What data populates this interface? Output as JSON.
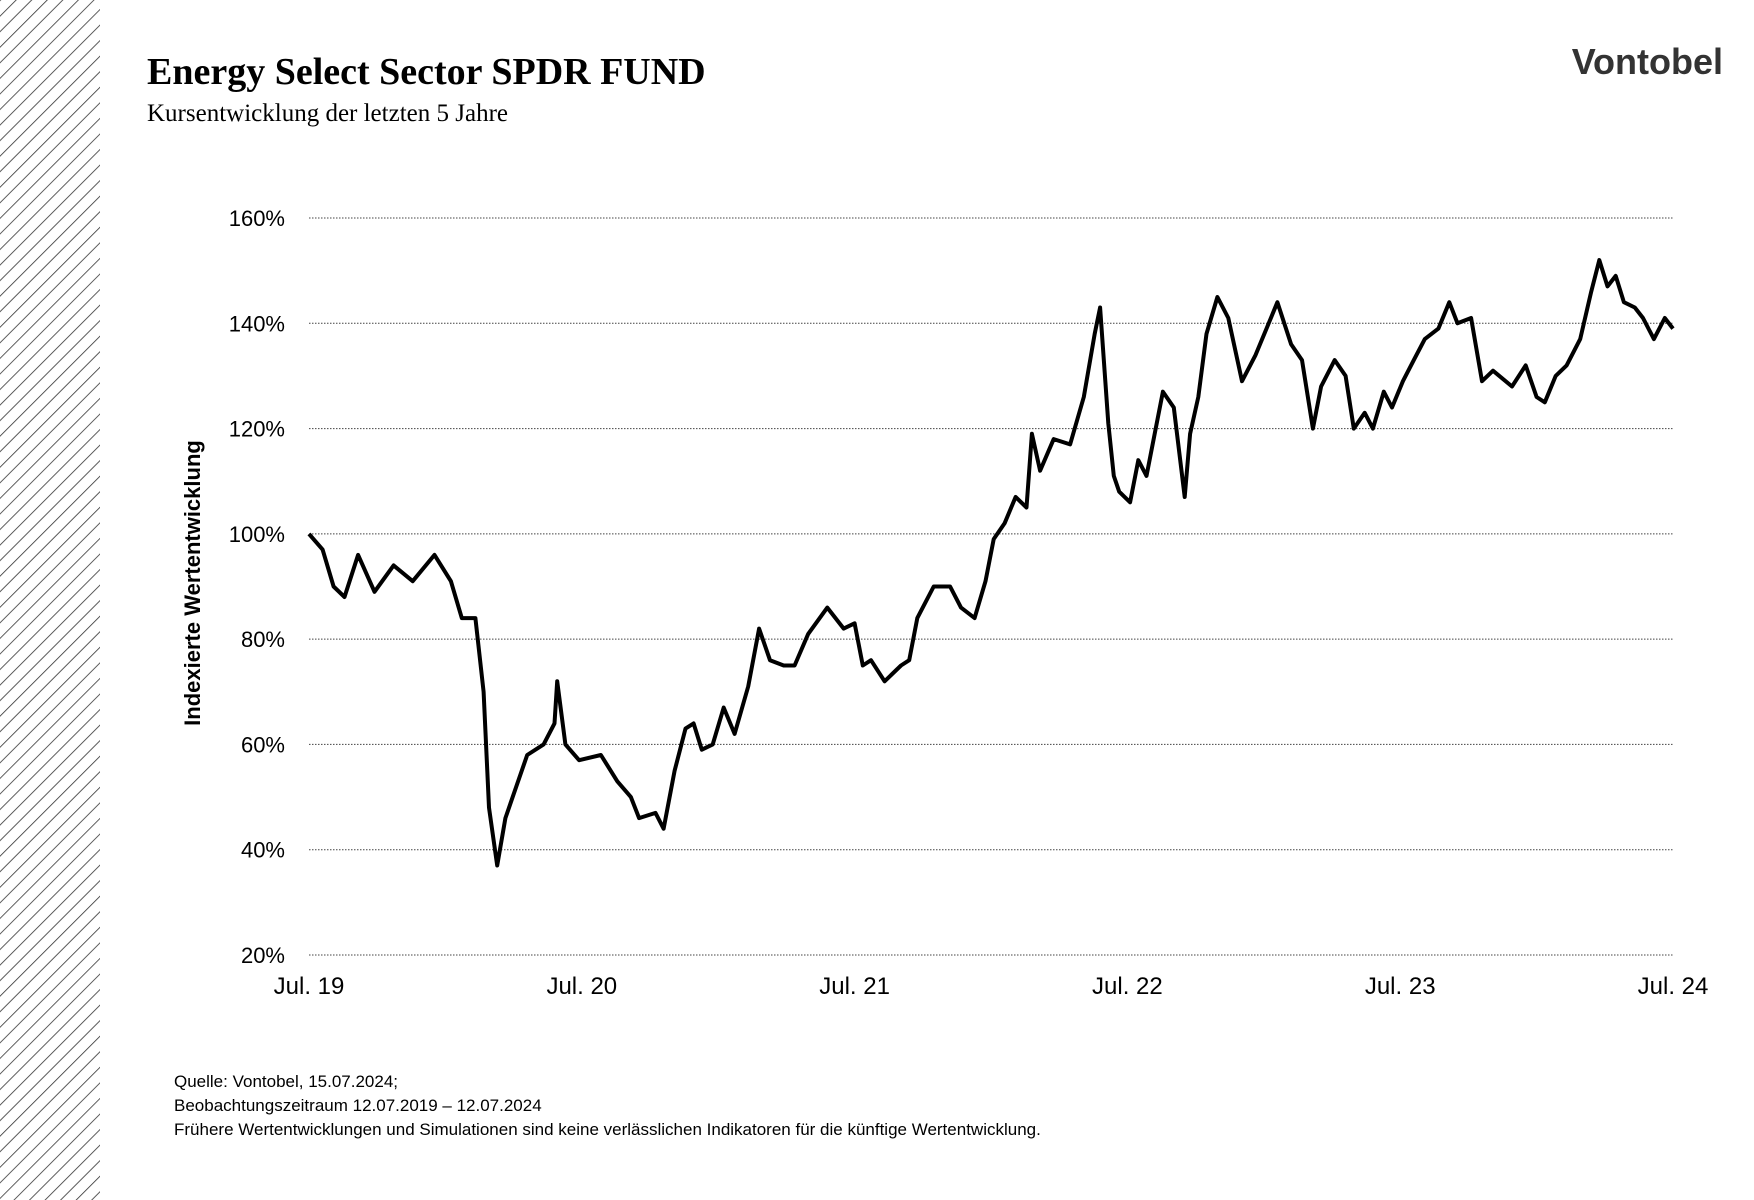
{
  "brand": "Vontobel",
  "chart_data": {
    "type": "line",
    "title": "Energy Select Sector SPDR FUND",
    "subtitle": "Kursentwicklung der letzten 5 Jahre",
    "y_label": "Indexierte Wertentwicklung",
    "notes": [
      "Quelle: Vontobel, 15.07.2024;",
      "Beobachtungszeitraum 12.07.2019 – 12.07.2024",
      "Frühere Wertentwicklungen und Simulationen sind keine verlässlichen Indikatoren für die künftige Wertentwicklung."
    ],
    "xlim": [
      2019.5,
      2024.5
    ],
    "xticks": [
      {
        "value": 2019.5,
        "label": "Jul. 19"
      },
      {
        "value": 2020.5,
        "label": "Jul. 20"
      },
      {
        "value": 2021.5,
        "label": "Jul. 21"
      },
      {
        "value": 2022.5,
        "label": "Jul. 22"
      },
      {
        "value": 2023.5,
        "label": "Jul. 23"
      },
      {
        "value": 2024.5,
        "label": "Jul. 24"
      }
    ],
    "ylim": [
      20,
      160
    ],
    "yticks": [
      {
        "value": 20,
        "label": "20%"
      },
      {
        "value": 40,
        "label": "40%"
      },
      {
        "value": 60,
        "label": "60%"
      },
      {
        "value": 80,
        "label": "80%"
      },
      {
        "value": 100,
        "label": "100%"
      },
      {
        "value": 120,
        "label": "120%"
      },
      {
        "value": 140,
        "label": "140%"
      },
      {
        "value": 160,
        "label": "160%"
      }
    ],
    "grid": true,
    "series": [
      {
        "color": "#000000",
        "x": [
          2019.5,
          2019.55,
          2019.59,
          2019.63,
          2019.68,
          2019.74,
          2019.81,
          2019.88,
          2019.96,
          2020.02,
          2020.06,
          2020.11,
          2020.14,
          2020.16,
          2020.19,
          2020.22,
          2020.26,
          2020.3,
          2020.36,
          2020.4,
          2020.41,
          2020.44,
          2020.49,
          2020.57,
          2020.63,
          2020.68,
          2020.71,
          2020.77,
          2020.8,
          2020.84,
          2020.88,
          2020.91,
          2020.94,
          2020.98,
          2021.02,
          2021.06,
          2021.11,
          2021.15,
          2021.19,
          2021.24,
          2021.28,
          2021.33,
          2021.4,
          2021.46,
          2021.5,
          2021.53,
          2021.56,
          2021.61,
          2021.67,
          2021.7,
          2021.73,
          2021.79,
          2021.85,
          2021.89,
          2021.94,
          2021.98,
          2022.01,
          2022.05,
          2022.09,
          2022.13,
          2022.15,
          2022.18,
          2022.23,
          2022.29,
          2022.34,
          2022.38,
          2022.4,
          2022.43,
          2022.45,
          2022.47,
          2022.51,
          2022.54,
          2022.57,
          2022.6,
          2022.63,
          2022.67,
          2022.71,
          2022.73,
          2022.76,
          2022.79,
          2022.83,
          2022.87,
          2022.92,
          2022.97,
          2023.01,
          2023.05,
          2023.1,
          2023.14,
          2023.18,
          2023.21,
          2023.26,
          2023.3,
          2023.33,
          2023.37,
          2023.4,
          2023.44,
          2023.47,
          2023.51,
          2023.55,
          2023.59,
          2023.64,
          2023.68,
          2023.71,
          2023.76,
          2023.8,
          2023.84,
          2023.91,
          2023.96,
          2024.0,
          2024.03,
          2024.07,
          2024.11,
          2024.16,
          2024.2,
          2024.23,
          2024.26,
          2024.29,
          2024.32,
          2024.36,
          2024.39,
          2024.43,
          2024.47,
          2024.5
        ],
        "values": [
          100,
          97,
          90,
          88,
          96,
          89,
          94,
          91,
          96,
          91,
          84,
          84,
          70,
          48,
          37,
          46,
          52,
          58,
          60,
          64,
          72,
          60,
          57,
          58,
          53,
          50,
          46,
          47,
          44,
          55,
          63,
          64,
          59,
          60,
          67,
          62,
          71,
          82,
          76,
          75,
          75,
          81,
          86,
          82,
          83,
          75,
          76,
          72,
          75,
          76,
          84,
          90,
          90,
          86,
          84,
          91,
          99,
          102,
          107,
          105,
          119,
          112,
          118,
          117,
          126,
          138,
          143,
          121,
          111,
          108,
          106,
          114,
          111,
          119,
          127,
          124,
          107,
          119,
          126,
          138,
          145,
          141,
          129,
          134,
          139,
          144,
          136,
          133,
          120,
          128,
          133,
          130,
          120,
          123,
          120,
          127,
          124,
          129,
          133,
          137,
          139,
          144,
          140,
          141,
          129,
          131,
          128,
          132,
          126,
          125,
          130,
          132,
          137,
          146,
          152,
          147,
          149,
          144,
          143,
          141,
          137,
          141,
          139
        ]
      }
    ]
  }
}
